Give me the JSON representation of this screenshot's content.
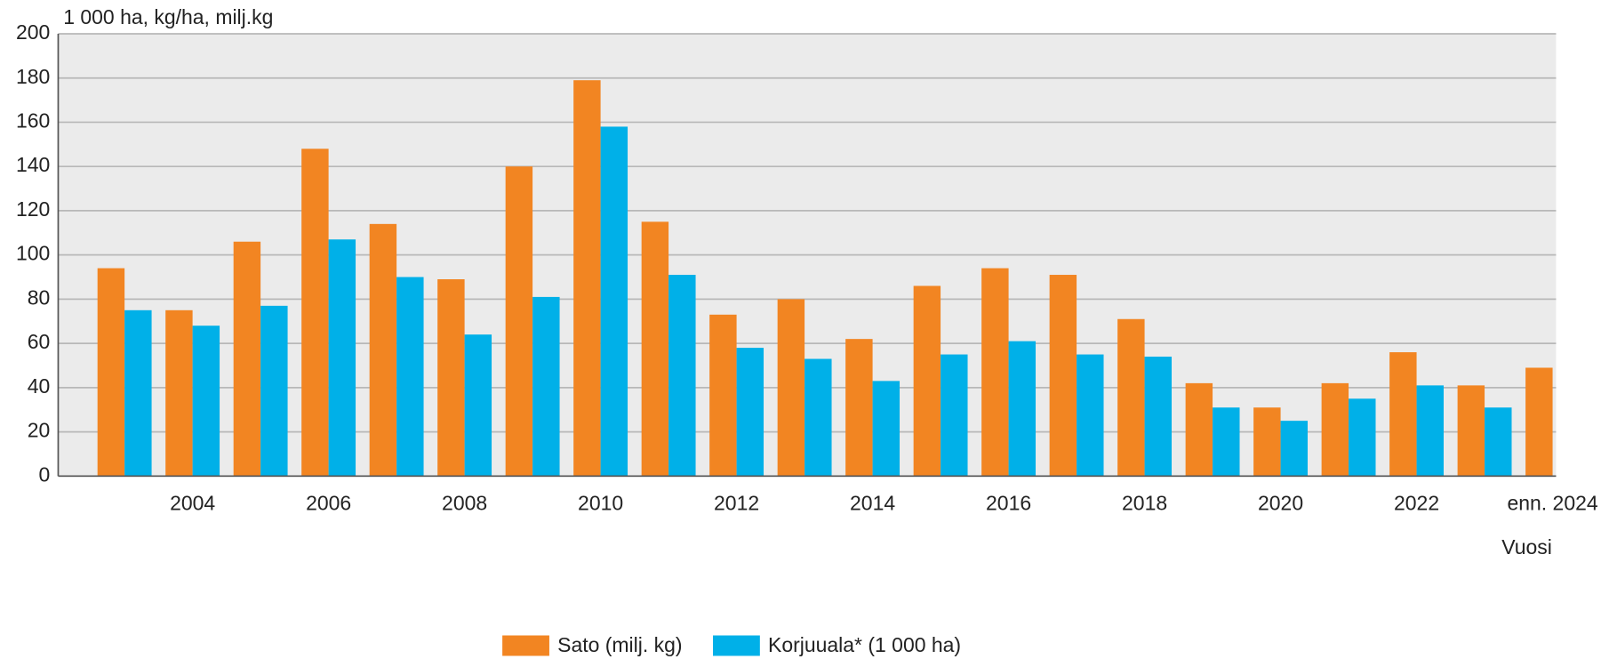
{
  "chart_data": {
    "type": "bar",
    "y_label": "1 000 ha, kg/ha, milj.kg",
    "x_label": "Vuosi",
    "categories": [
      null,
      "2004",
      null,
      "2006",
      null,
      "2008",
      null,
      "2010",
      null,
      "2012",
      null,
      "2014",
      null,
      "2016",
      null,
      "2018",
      null,
      "2020",
      null,
      "2022",
      null,
      "enn. 2024"
    ],
    "series": [
      {
        "name": "Sato (milj. kg)",
        "color": "#f28522",
        "values": [
          94,
          75,
          106,
          148,
          114,
          89,
          140,
          179,
          115,
          73,
          80,
          62,
          86,
          94,
          91,
          71,
          42,
          31,
          42,
          56,
          41,
          49
        ]
      },
      {
        "name": "Korjuuala* (1 000 ha)",
        "color": "#00b0e8",
        "values": [
          75,
          68,
          77,
          107,
          90,
          64,
          81,
          158,
          91,
          58,
          53,
          43,
          55,
          61,
          55,
          54,
          31,
          25,
          35,
          41,
          31,
          null
        ]
      }
    ],
    "ylim": [
      0,
      200
    ],
    "yticks": [
      0,
      20,
      40,
      60,
      80,
      100,
      120,
      140,
      160,
      180,
      200
    ],
    "grid": true,
    "legend": "bottom"
  }
}
